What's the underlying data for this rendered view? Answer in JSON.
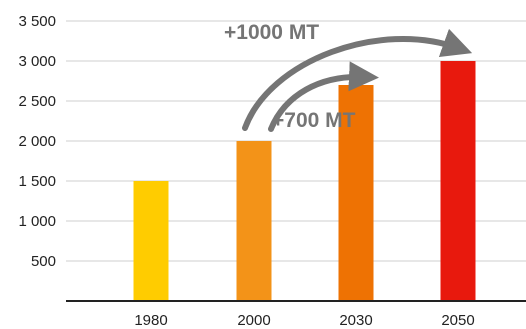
{
  "chart_data": {
    "type": "bar",
    "categories": [
      "1980",
      "2000",
      "2030",
      "2050"
    ],
    "values": [
      1500,
      2000,
      2700,
      3000
    ],
    "bar_colors": [
      "#FFCC00",
      "#F39318",
      "#EE7203",
      "#E8190D"
    ],
    "ylim": [
      0,
      3500
    ],
    "yticks": [
      500,
      1000,
      1500,
      2000,
      2500,
      3000,
      3500
    ],
    "ytick_labels": [
      "500",
      "1 000",
      "1 500",
      "2 000",
      "2 500",
      "3 000",
      "3 500"
    ],
    "grid": true,
    "title": "",
    "xlabel": "",
    "ylabel": "",
    "annotations": [
      {
        "text": "+1000 MT",
        "from": "2000",
        "to": "2050",
        "color": "#757575"
      },
      {
        "text": "+700 MT",
        "from": "2000",
        "to": "2030",
        "color": "#757575"
      }
    ]
  }
}
